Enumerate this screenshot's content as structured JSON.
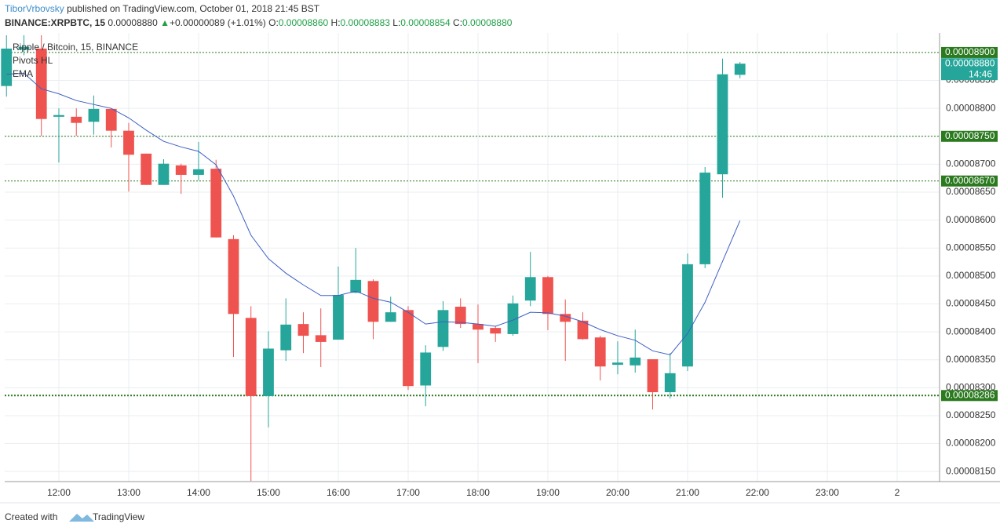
{
  "header": {
    "author": "TiborVrbovsky",
    "published": " published on TradingView.com, October 01, 2018 21:45 BST",
    "symbol": "BINANCE:XRPBTC, 15",
    "last": "0.00008880",
    "arrow": "▲",
    "change": "+0.00000089 (+1.01%)",
    "o_label": "O:",
    "o": "0.00008860",
    "h_label": "H:",
    "h": "0.00008883",
    "l_label": "L:",
    "l": "0.00008854",
    "c_label": "C:",
    "c": "0.00008880"
  },
  "footer": {
    "created": "Created with",
    "brand": "TradingView"
  },
  "chart_data": {
    "type": "candlestick",
    "title": "Ripple / Bitcoin, 15, BINANCE",
    "indicator": "Pivots HL",
    "up_color": "#26a69a",
    "down_color": "#ef5350",
    "xlim": [
      11.225,
      24.607
    ],
    "xticks": [
      {
        "value": 12,
        "label": "12:00"
      },
      {
        "value": 13,
        "label": "13:00"
      },
      {
        "value": 14,
        "label": "14:00"
      },
      {
        "value": 15,
        "label": "15:00"
      },
      {
        "value": 16,
        "label": "16:00"
      },
      {
        "value": 17,
        "label": "17:00"
      },
      {
        "value": 18,
        "label": "18:00"
      },
      {
        "value": 19,
        "label": "19:00"
      },
      {
        "value": 20,
        "label": "20:00"
      },
      {
        "value": 21,
        "label": "21:00"
      },
      {
        "value": 22,
        "label": "22:00"
      },
      {
        "value": 23,
        "label": "23:00"
      },
      {
        "value": 24,
        "label": "2"
      }
    ],
    "ylim": [
      8.132e-05,
      8.935e-05
    ],
    "yticks": [
      {
        "value": 8.15e-05,
        "label": "0.00008150"
      },
      {
        "value": 8.2e-05,
        "label": "0.00008200"
      },
      {
        "value": 8.25e-05,
        "label": "0.00008250"
      },
      {
        "value": 8.3e-05,
        "label": "0.00008300"
      },
      {
        "value": 8.35e-05,
        "label": "0.00008350"
      },
      {
        "value": 8.4e-05,
        "label": "0.00008400"
      },
      {
        "value": 8.45e-05,
        "label": "0.00008450"
      },
      {
        "value": 8.5e-05,
        "label": "0.00008500"
      },
      {
        "value": 8.55e-05,
        "label": "0.00008550"
      },
      {
        "value": 8.6e-05,
        "label": "0.00008600"
      },
      {
        "value": 8.65e-05,
        "label": "0.00008650"
      },
      {
        "value": 8.7e-05,
        "label": "0.00008700"
      },
      {
        "value": 8.75e-05,
        "label": "0.00008750"
      },
      {
        "value": 8.8e-05,
        "label": "0.00008800"
      },
      {
        "value": 8.85e-05,
        "label": "0.00008850"
      }
    ],
    "grid": true,
    "x": [
      11.25,
      11.5,
      11.75,
      12,
      12.25,
      12.5,
      12.75,
      13,
      13.25,
      13.5,
      13.75,
      14,
      14.25,
      14.5,
      14.75,
      15,
      15.25,
      15.5,
      15.75,
      16,
      16.25,
      16.5,
      16.75,
      17,
      17.25,
      17.5,
      17.75,
      18,
      18.25,
      18.5,
      18.75,
      19,
      19.25,
      19.5,
      19.75,
      20,
      20.25,
      20.5,
      20.75,
      21,
      21.25,
      21.5,
      21.75
    ],
    "open": [
      8.84e-05,
      8.905e-05,
      8.907e-05,
      8.785e-05,
      8.785e-05,
      8.776e-05,
      8.799e-05,
      8.76e-05,
      8.719e-05,
      8.663e-05,
      8.698e-05,
      8.681e-05,
      8.692e-05,
      8.566e-05,
      8.425e-05,
      8.285e-05,
      8.367e-05,
      8.414e-05,
      8.394e-05,
      8.386e-05,
      8.47e-05,
      8.491e-05,
      8.418e-05,
      8.439e-05,
      8.304e-05,
      8.373e-05,
      8.445e-05,
      8.414e-05,
      8.407e-05,
      8.396e-05,
      8.456e-05,
      8.498e-05,
      8.432e-05,
      8.42e-05,
      8.39e-05,
      8.341e-05,
      8.34e-05,
      8.351e-05,
      8.292e-05,
      8.338e-05,
      8.521e-05,
      8.682e-05,
      8.86e-05
    ],
    "high": [
      8.931e-05,
      8.931e-05,
      8.931e-05,
      8.8e-05,
      8.8e-05,
      8.823e-05,
      8.8e-05,
      8.774e-05,
      8.719e-05,
      8.709e-05,
      8.701e-05,
      8.74e-05,
      8.708e-05,
      8.573e-05,
      8.446e-05,
      8.401e-05,
      8.46e-05,
      8.435e-05,
      8.442e-05,
      8.517e-05,
      8.55e-05,
      8.494e-05,
      8.463e-05,
      8.446e-05,
      8.376e-05,
      8.455e-05,
      8.46e-05,
      8.449e-05,
      8.41e-05,
      8.465e-05,
      8.543e-05,
      8.5e-05,
      8.458e-05,
      8.435e-05,
      8.393e-05,
      8.383e-05,
      8.404e-05,
      8.351e-05,
      8.362e-05,
      8.54e-05,
      8.695e-05,
      8.889e-05,
      8.883e-05
    ],
    "low": [
      8.821e-05,
      8.895e-05,
      8.751e-05,
      8.703e-05,
      8.751e-05,
      8.753e-05,
      8.73e-05,
      8.651e-05,
      8.663e-05,
      8.663e-05,
      8.647e-05,
      8.671e-05,
      8.569e-05,
      8.355e-05,
      8.133e-05,
      8.229e-05,
      8.348e-05,
      8.362e-05,
      8.337e-05,
      8.386e-05,
      8.469e-05,
      8.387e-05,
      8.418e-05,
      8.296e-05,
      8.267e-05,
      8.366e-05,
      8.407e-05,
      8.344e-05,
      8.382e-05,
      8.393e-05,
      8.446e-05,
      8.403e-05,
      8.348e-05,
      8.386e-05,
      8.313e-05,
      8.324e-05,
      8.327e-05,
      8.261e-05,
      8.281e-05,
      8.33e-05,
      8.514e-05,
      8.64e-05,
      8.854e-05
    ],
    "close": [
      8.907e-05,
      8.91e-05,
      8.781e-05,
      8.788e-05,
      8.774e-05,
      8.799e-05,
      8.76e-05,
      8.717e-05,
      8.663e-05,
      8.701e-05,
      8.681e-05,
      8.691e-05,
      8.569e-05,
      8.432e-05,
      8.285e-05,
      8.37e-05,
      8.413e-05,
      8.393e-05,
      8.382e-05,
      8.466e-05,
      8.493e-05,
      8.418e-05,
      8.435e-05,
      8.303e-05,
      8.363e-05,
      8.439e-05,
      8.414e-05,
      8.404e-05,
      8.397e-05,
      8.451e-05,
      8.498e-05,
      8.432e-05,
      8.418e-05,
      8.387e-05,
      8.338e-05,
      8.345e-05,
      8.354e-05,
      8.292e-05,
      8.326e-05,
      8.521e-05,
      8.685e-05,
      8.861e-05,
      8.88e-05
    ],
    "series": [
      {
        "name": "EMA",
        "color": "#3d5fc4",
        "values": [
          8.861e-05,
          8.863e-05,
          8.835e-05,
          8.826e-05,
          8.814e-05,
          8.807e-05,
          8.8e-05,
          8.783e-05,
          8.761e-05,
          8.741e-05,
          8.731e-05,
          8.723e-05,
          8.699e-05,
          8.643e-05,
          8.573e-05,
          8.531e-05,
          8.505e-05,
          8.484e-05,
          8.465e-05,
          8.465e-05,
          8.473e-05,
          8.46e-05,
          8.453e-05,
          8.435e-05,
          8.414e-05,
          8.418e-05,
          8.417e-05,
          8.414e-05,
          8.41e-05,
          8.421e-05,
          8.435e-05,
          8.434e-05,
          8.428e-05,
          8.418e-05,
          8.404e-05,
          8.393e-05,
          8.385e-05,
          8.366e-05,
          8.359e-05,
          8.397e-05,
          8.453e-05,
          8.526e-05,
          8.599e-05
        ]
      }
    ],
    "pivot_color": "#2b7a1f",
    "pivots": [
      {
        "value": 8.9e-05,
        "label": "0.00008900"
      },
      {
        "value": 8.75e-05,
        "label": "0.00008750"
      },
      {
        "value": 8.67e-05,
        "label": "0.00008670"
      },
      {
        "value": 8.286e-05,
        "label": "0.00008286"
      }
    ],
    "last_price": {
      "value": 8.88e-05,
      "label": "0.00008880"
    },
    "countdown": "14:46"
  }
}
